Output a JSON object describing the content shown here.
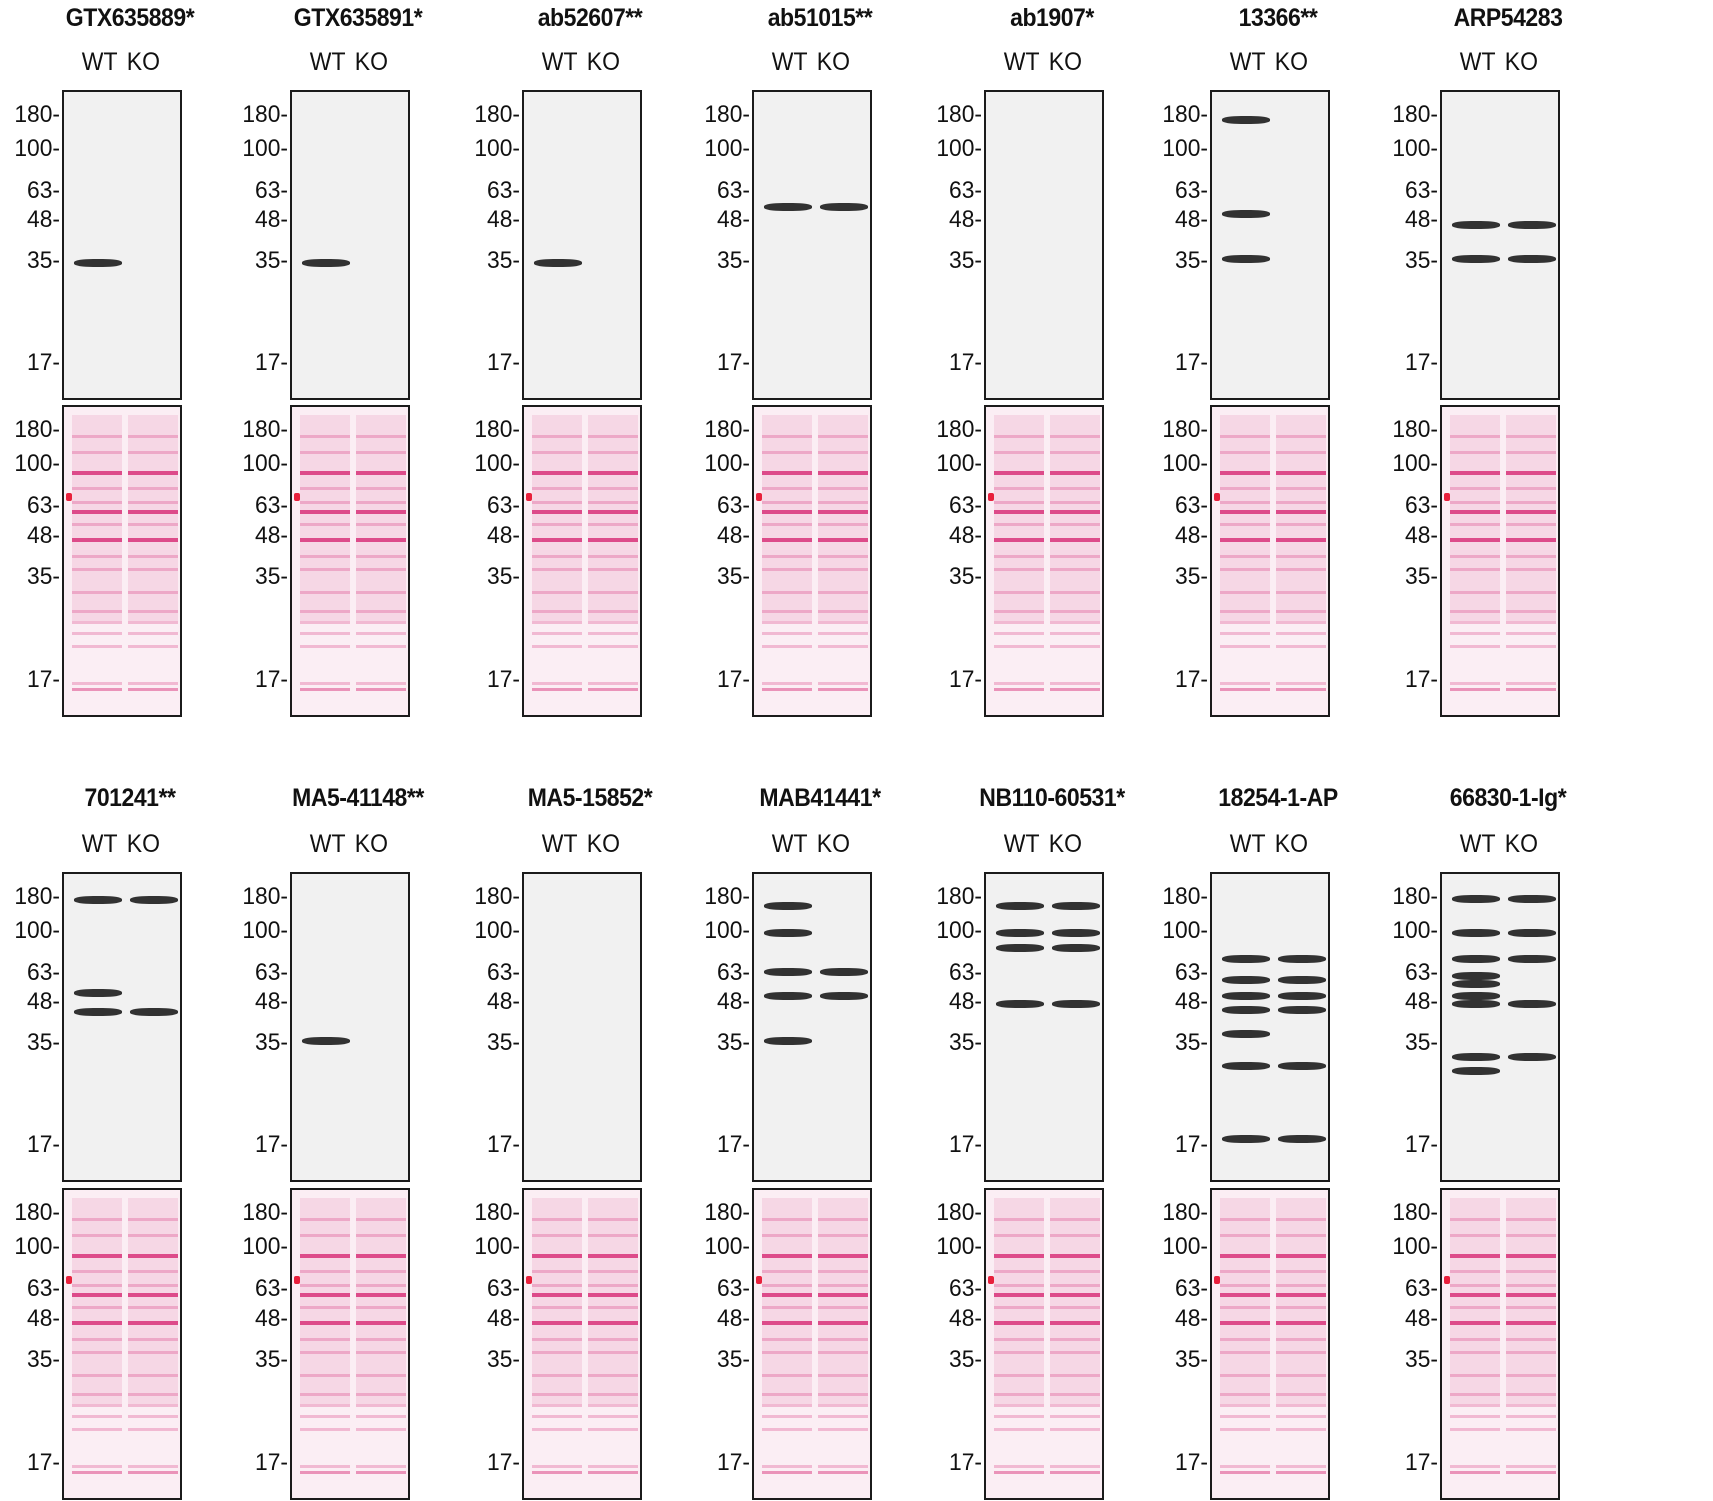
{
  "figure": {
    "lane_labels": [
      "WT",
      "KO"
    ],
    "mw_markers_kda": [
      "180",
      "100",
      "63",
      "48",
      "35",
      "17"
    ],
    "mw_suffix": "-",
    "colors": {
      "blot_background": "#f1f1f1",
      "band_dark": "#111111",
      "ponceau_background": "#fbeef4",
      "ponceau_band": "#d9337a",
      "frame": "#1b1b1b"
    },
    "panels": [
      {
        "antibody": "GTX635889*",
        "wt_bands_kda": [
          35
        ],
        "ko_bands_kda": [],
        "note": "single WT band ~35 kDa"
      },
      {
        "antibody": "GTX635891*",
        "wt_bands_kda": [
          35
        ],
        "ko_bands_kda": [],
        "note": "single WT band ~35 kDa"
      },
      {
        "antibody": "ab52607**",
        "wt_bands_kda": [
          35
        ],
        "ko_bands_kda": [],
        "note": "single WT band ~35 kDa"
      },
      {
        "antibody": "ab51015**",
        "wt_bands_kda": [
          55
        ],
        "ko_bands_kda": [
          55
        ],
        "note": "strong band ~55 kDa in both lanes"
      },
      {
        "antibody": "ab1907*",
        "wt_bands_kda": [],
        "ko_bands_kda": [],
        "note": "no detectable bands"
      },
      {
        "antibody": "13366**",
        "wt_bands_kda": [
          170,
          52,
          36
        ],
        "ko_bands_kda": [],
        "note": "WT-only bands"
      },
      {
        "antibody": "ARP54283",
        "wt_bands_kda": [
          47,
          36
        ],
        "ko_bands_kda": [
          47,
          36
        ],
        "note": "faint bands, high background"
      },
      {
        "antibody": "701241**",
        "wt_bands_kda": [
          175,
          53,
          45
        ],
        "ko_bands_kda": [
          175,
          45
        ],
        "note": "WT-specific ~53 kDa band"
      },
      {
        "antibody": "MA5-41148**",
        "wt_bands_kda": [
          36
        ],
        "ko_bands_kda": [],
        "note": "single WT band ~36 kDa"
      },
      {
        "antibody": "MA5-15852*",
        "wt_bands_kda": [],
        "ko_bands_kda": [],
        "note": "no detectable bands"
      },
      {
        "antibody": "MAB41441*",
        "wt_bands_kda": [
          160,
          100,
          65,
          52,
          36
        ],
        "ko_bands_kda": [
          65,
          52
        ],
        "note": "WT-specific ~36 kDa band"
      },
      {
        "antibody": "NB110-60531*",
        "wt_bands_kda": [
          160,
          100,
          85,
          48
        ],
        "ko_bands_kda": [
          160,
          100,
          85,
          48
        ],
        "note": "multiple bands in both lanes"
      },
      {
        "antibody": "18254-1-AP",
        "wt_bands_kda": [
          75,
          60,
          52,
          46,
          38,
          30,
          18
        ],
        "ko_bands_kda": [
          75,
          60,
          52,
          46,
          30,
          18
        ],
        "note": "many bands, WT-specific ~38 kDa"
      },
      {
        "antibody": "66830-1-Ig*",
        "wt_bands_kda": [
          180,
          100,
          75,
          62,
          58,
          52,
          48,
          32,
          29
        ],
        "ko_bands_kda": [
          180,
          100,
          75,
          48,
          32
        ],
        "note": "many bands, stronger in WT"
      }
    ]
  }
}
